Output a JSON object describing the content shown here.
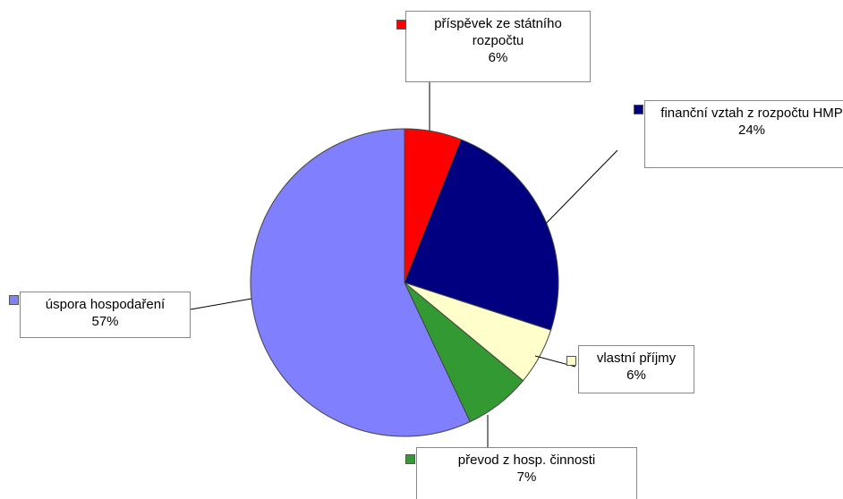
{
  "chart_data": {
    "type": "pie",
    "categories": [
      "příspěvek ze státního rozpočtu",
      "finanční vztah z rozpočtu HMP",
      "vlastní příjmy",
      "převod z hosp. činnosti",
      "úspora hospodaření"
    ],
    "values": [
      6,
      24,
      6,
      7,
      57
    ],
    "value_labels": [
      "6%",
      "24%",
      "6%",
      "7%",
      "57%"
    ],
    "colors": [
      "#ff0000",
      "#000080",
      "#ffffcc",
      "#339933",
      "#8080ff"
    ]
  }
}
